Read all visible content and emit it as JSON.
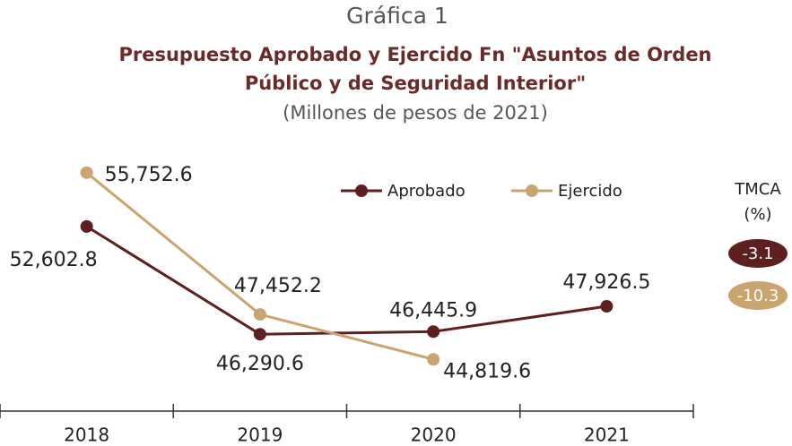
{
  "chart_data": {
    "type": "line",
    "heading": "Gráfica 1",
    "title": [
      "Presupuesto Aprobado y Ejercido Fn \"Asuntos de Orden",
      "Público y de Seguridad Interior\""
    ],
    "subtitle": "(Millones de pesos de 2021)",
    "categories": [
      "2018",
      "2019",
      "2020",
      "2021"
    ],
    "ylim": [
      42000,
      58000
    ],
    "series": [
      {
        "name": "Aprobado",
        "color": "#5e1f1f",
        "values": [
          52602.8,
          46290.6,
          46445.9,
          47926.5
        ],
        "value_labels": [
          "52,602.8",
          "46,290.6",
          "46,445.9",
          "47,926.5"
        ],
        "tmca": -3.1
      },
      {
        "name": "Ejercido",
        "color": "#c9a46e",
        "values": [
          55752.6,
          47452.2,
          44819.6,
          null
        ],
        "value_labels": [
          "55,752.6",
          "47,452.2",
          "44,819.6",
          null
        ],
        "tmca": -10.3
      }
    ],
    "tmca_label": [
      "TMCA",
      "(%)"
    ]
  }
}
